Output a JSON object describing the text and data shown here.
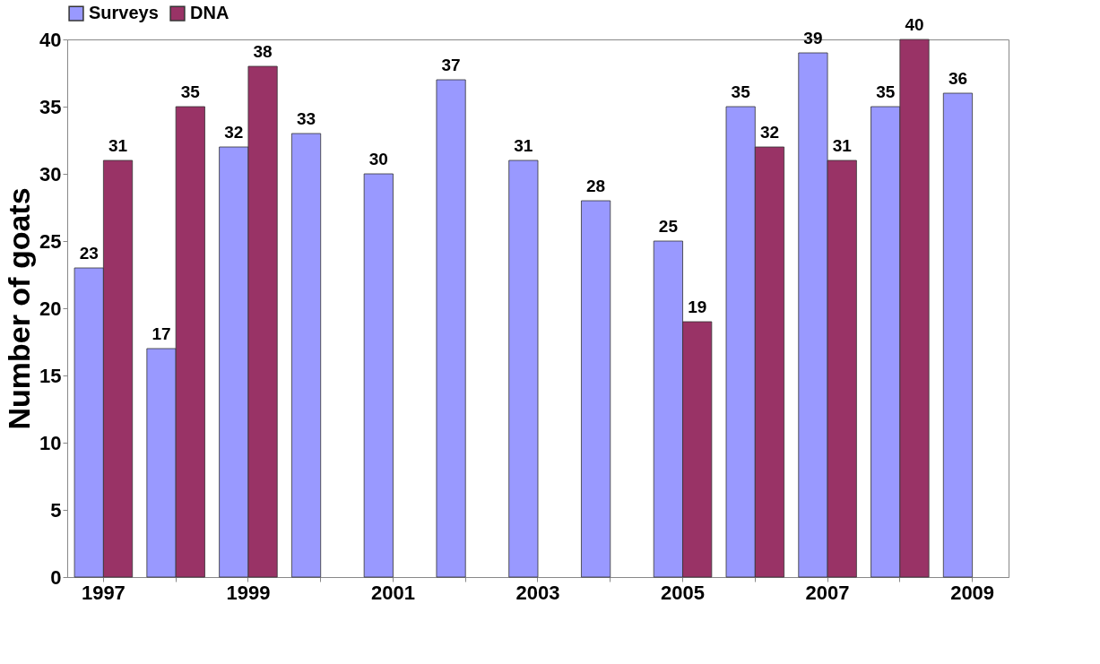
{
  "chart_data": {
    "type": "bar",
    "ylabel": "Number of goats",
    "categories": [
      "1997",
      null,
      "1999",
      null,
      "2001",
      null,
      "2003",
      null,
      "2005",
      null,
      "2007",
      null,
      "2009"
    ],
    "series": [
      {
        "name": "Surveys",
        "color": "#9999ff",
        "values": [
          23,
          17,
          32,
          33,
          30,
          37,
          31,
          28,
          25,
          35,
          39,
          35,
          36
        ]
      },
      {
        "name": "DNA",
        "color": "#993366",
        "values": [
          31,
          35,
          38,
          null,
          null,
          null,
          null,
          null,
          19,
          32,
          31,
          40,
          null
        ]
      }
    ],
    "ylim": [
      0,
      40
    ],
    "yticks": [
      0,
      5,
      10,
      15,
      20,
      25,
      30,
      35,
      40
    ],
    "grid": false,
    "legend": "top",
    "data_labels": true
  }
}
